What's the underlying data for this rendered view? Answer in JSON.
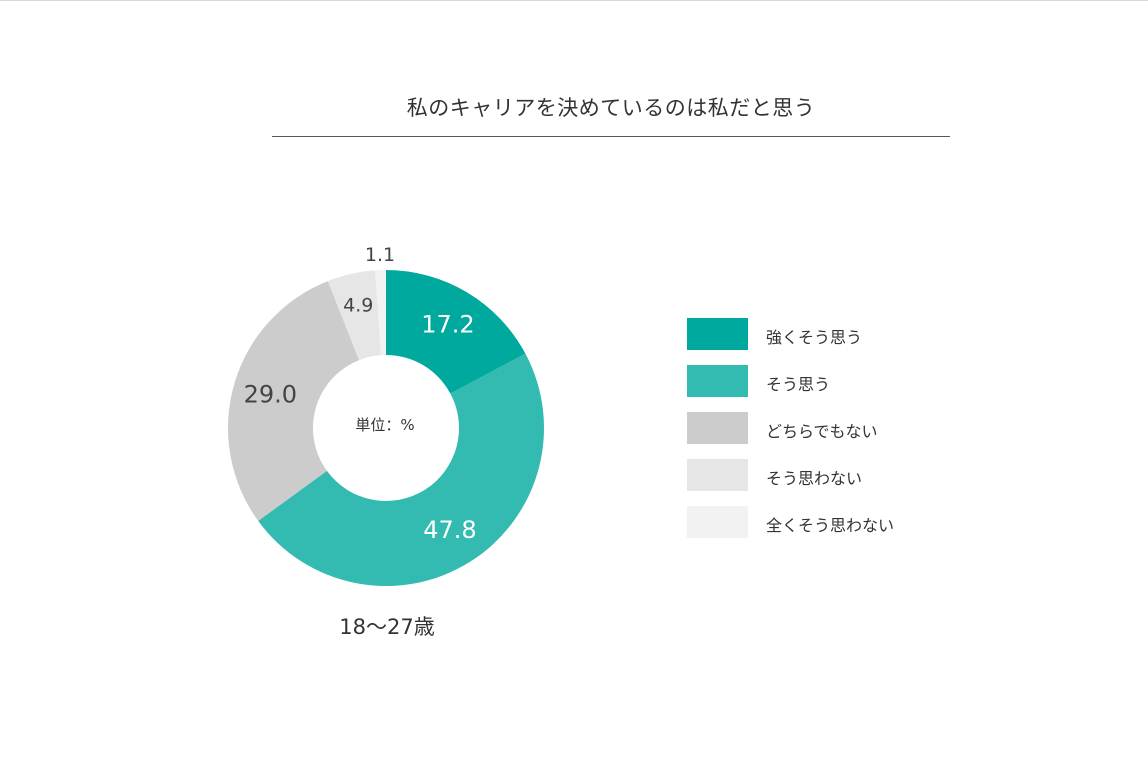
{
  "title": "私のキャリアを決めているのは私だと思う",
  "chart_data": {
    "type": "pie",
    "variant": "donut",
    "unit_label": "単位：%",
    "group_label": "18〜27歳",
    "legend_position": "right",
    "categories": [
      "強くそう思う",
      "そう思う",
      "どちらでもない",
      "そう思わない",
      "全くそう思わない"
    ],
    "values": [
      17.2,
      47.8,
      29.0,
      4.9,
      1.1
    ],
    "value_labels": [
      "17.2",
      "47.8",
      "29.0",
      "4.9",
      "1.1"
    ],
    "colors": [
      "#00a99d",
      "#33bab1",
      "#cccccc",
      "#e6e6e6",
      "#f2f2f2"
    ],
    "label_colors": [
      "#ffffff",
      "#ffffff",
      "#444444",
      "#444444",
      "#444444"
    ]
  }
}
